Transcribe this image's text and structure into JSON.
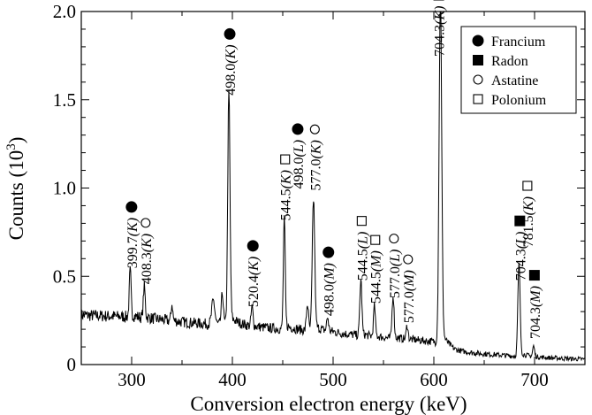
{
  "chart_data": {
    "type": "line",
    "xlabel": "Conversion electron energy (keV)",
    "ylabel": "Counts (10",
    "ylabel_sup": "3",
    "ylabel_close": ")",
    "xlim": [
      250,
      750
    ],
    "ylim": [
      0,
      2.0
    ],
    "xticks": [
      300,
      400,
      500,
      600,
      700
    ],
    "xtick_labels": [
      "300",
      "400",
      "500",
      "600",
      "700"
    ],
    "yticks": [
      0,
      0.5,
      1.0,
      1.5,
      2.0
    ],
    "ytick_labels": [
      "0",
      "0.5",
      "1.0",
      "1.5",
      "2.0"
    ],
    "grid": false,
    "legend_position": "top-right",
    "legend": [
      {
        "symbol": "filled-circle",
        "label": "Francium"
      },
      {
        "symbol": "filled-square",
        "label": "Radon"
      },
      {
        "symbol": "open-circle",
        "label": "Astatine"
      },
      {
        "symbol": "open-square",
        "label": "Polonium"
      }
    ],
    "baseline": [
      [
        250,
        0.28
      ],
      [
        300,
        0.27
      ],
      [
        350,
        0.24
      ],
      [
        400,
        0.22
      ],
      [
        450,
        0.2
      ],
      [
        500,
        0.18
      ],
      [
        550,
        0.15
      ],
      [
        600,
        0.13
      ],
      [
        620,
        0.07
      ],
      [
        650,
        0.06
      ],
      [
        700,
        0.04
      ],
      [
        750,
        0.03
      ]
    ],
    "peaks": [
      {
        "x": 298.5,
        "y": 0.53,
        "w": 0.9
      },
      {
        "x": 312.5,
        "y": 0.44,
        "w": 0.9
      },
      {
        "x": 340,
        "y": 0.34,
        "w": 0.8
      },
      {
        "x": 381,
        "y": 0.36,
        "w": 1.5
      },
      {
        "x": 390,
        "y": 0.4,
        "w": 1.0
      },
      {
        "x": 396.5,
        "y": 1.53,
        "w": 1.1
      },
      {
        "x": 419.5,
        "y": 0.32,
        "w": 0.9
      },
      {
        "x": 451.5,
        "y": 0.82,
        "w": 0.9
      },
      {
        "x": 474.5,
        "y": 0.34,
        "w": 1.0
      },
      {
        "x": 480.5,
        "y": 0.93,
        "w": 1.2
      },
      {
        "x": 494.5,
        "y": 0.26,
        "w": 0.9
      },
      {
        "x": 527.5,
        "y": 0.48,
        "w": 1.0
      },
      {
        "x": 541,
        "y": 0.33,
        "w": 0.9
      },
      {
        "x": 559.5,
        "y": 0.39,
        "w": 1.0
      },
      {
        "x": 573.5,
        "y": 0.22,
        "w": 0.9
      },
      {
        "x": 606.5,
        "y": 2.05,
        "w": 1.3
      },
      {
        "x": 684.5,
        "y": 0.57,
        "w": 1.1
      },
      {
        "x": 699,
        "y": 0.1,
        "w": 0.9
      }
    ],
    "annotations": [
      {
        "x": 299,
        "y": 0.52,
        "energy": "399.7",
        "shell": "K",
        "symbol": "filled-circle"
      },
      {
        "x": 313,
        "y": 0.43,
        "energy": "408.3",
        "shell": "K",
        "symbol": "open-circle"
      },
      {
        "x": 396.5,
        "y": 1.5,
        "energy": "498.0",
        "shell": "K",
        "symbol": "filled-circle"
      },
      {
        "x": 419.5,
        "y": 0.3,
        "energy": "520.4",
        "shell": "K",
        "symbol": "filled-circle"
      },
      {
        "x": 451.5,
        "y": 0.79,
        "energy": "544.5",
        "shell": "K",
        "symbol": "open-square"
      },
      {
        "x": 464,
        "y": 0.97,
        "energy": "498.0",
        "shell": "L",
        "symbol": "filled-circle"
      },
      {
        "x": 481,
        "y": 0.96,
        "energy": "577.0",
        "shell": "K",
        "symbol": "open-circle"
      },
      {
        "x": 494.5,
        "y": 0.25,
        "energy": "498.0",
        "shell": "M",
        "symbol": "filled-circle"
      },
      {
        "x": 527.5,
        "y": 0.45,
        "energy": "544.5",
        "shell": "L",
        "symbol": "open-square"
      },
      {
        "x": 541,
        "y": 0.32,
        "energy": "544.5",
        "shell": "M",
        "symbol": "open-square"
      },
      {
        "x": 559.5,
        "y": 0.35,
        "energy": "577.0",
        "shell": "L",
        "symbol": "open-circle"
      },
      {
        "x": 573.5,
        "y": 0.21,
        "energy": "577.0",
        "shell": "M",
        "symbol": "open-circle"
      },
      {
        "x": 604,
        "y": 1.72,
        "energy": "704.3",
        "shell": "K",
        "symbol": "filled-square"
      },
      {
        "x": 684.5,
        "y": 0.45,
        "energy": "704.3",
        "shell": "L",
        "symbol": "filled-square"
      },
      {
        "x": 692,
        "y": 0.64,
        "energy": "781.5",
        "shell": "K",
        "symbol": "open-square"
      },
      {
        "x": 699,
        "y": 0.12,
        "energy": "704.3",
        "shell": "M",
        "symbol": "filled-square"
      }
    ]
  }
}
